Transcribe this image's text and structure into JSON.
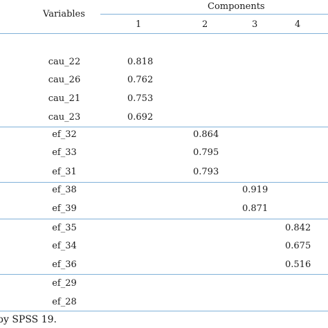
{
  "header": {
    "variables_label": "Variables",
    "components_label": "Components",
    "component_numbers": [
      "1",
      "2",
      "3",
      "4"
    ]
  },
  "rows": [
    {
      "variable": "cau_22",
      "values": [
        "0.818",
        "",
        "",
        ""
      ]
    },
    {
      "variable": "cau_26",
      "values": [
        "0.762",
        "",
        "",
        ""
      ]
    },
    {
      "variable": "cau_21",
      "values": [
        "0.753",
        "",
        "",
        ""
      ]
    },
    {
      "variable": "cau_23",
      "values": [
        "0.692",
        "",
        "",
        ""
      ]
    },
    {
      "variable": "ef_32",
      "values": [
        "",
        "0.864",
        "",
        ""
      ]
    },
    {
      "variable": "ef_33",
      "values": [
        "",
        "0.795",
        "",
        ""
      ]
    },
    {
      "variable": "ef_31",
      "values": [
        "",
        "0.793",
        "",
        ""
      ]
    },
    {
      "variable": "ef_38",
      "values": [
        "",
        "",
        "0.919",
        ""
      ]
    },
    {
      "variable": "ef_39",
      "values": [
        "",
        "",
        "0.871",
        ""
      ]
    },
    {
      "variable": "ef_35",
      "values": [
        "",
        "",
        "",
        "0.842"
      ]
    },
    {
      "variable": "ef_34",
      "values": [
        "",
        "",
        "",
        "0.675"
      ]
    },
    {
      "variable": "ef_36",
      "values": [
        "",
        "",
        "",
        "0.516"
      ]
    },
    {
      "variable": "ef_29",
      "values": [
        "",
        "",
        "",
        ""
      ]
    },
    {
      "variable": "ef_28",
      "values": [
        "",
        "",
        "",
        ""
      ]
    }
  ],
  "footnote": "by SPSS 19.",
  "colors": {
    "rule": "#7fb0d8",
    "text": "#1a1a1a"
  }
}
